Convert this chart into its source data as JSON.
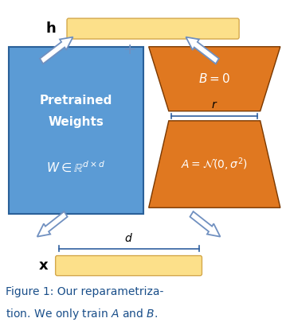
{
  "fig_width": 3.59,
  "fig_height": 4.05,
  "dpi": 100,
  "bg_color": "#ffffff",
  "blue_color": "#5b9bd5",
  "orange_color": "#e07820",
  "yellow_color": "#fce08a",
  "yellow_edge": "#d4a84b",
  "arrow_face": "#ffffff",
  "arrow_edge": "#7090c0",
  "caption_color": "#1a4f8a",
  "white": "#ffffff",
  "dark_edge": "#555555",
  "xlim": [
    0,
    10
  ],
  "ylim": [
    0,
    10
  ],
  "h_label": "$\\mathbf{h}$",
  "x_label": "$\\mathbf{x}$",
  "pretrained_line1": "Pretrained",
  "pretrained_line2": "Weights",
  "w_formula": "$W \\in \\mathbb{R}^{d\\times d}$",
  "B_formula": "$B = 0$",
  "A_formula": "$A = \\mathcal{N}(0, \\sigma^2)$",
  "r_label": "$r$",
  "d_label": "$d$",
  "caption_line1": "Figure 1: Our reparametriza-",
  "caption_line2": "tion. We only train $A$ and $B$."
}
